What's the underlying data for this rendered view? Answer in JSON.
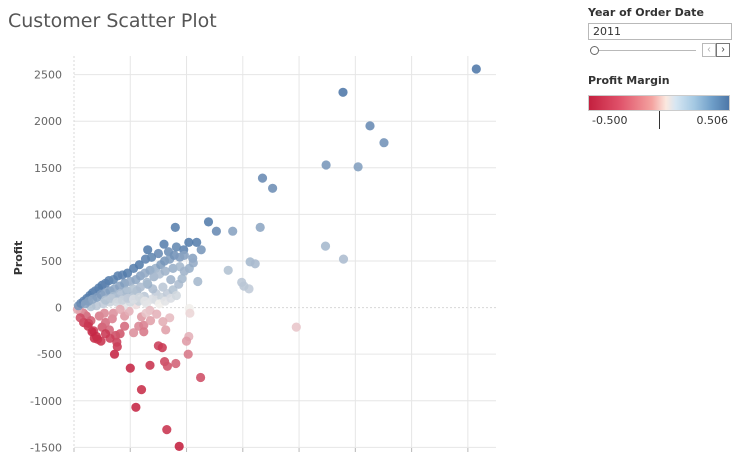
{
  "title": "Customer Scatter Plot",
  "filters": {
    "year": {
      "label": "Year of Order Date",
      "value": "2011",
      "prev_icon": "chevron-left-icon",
      "next_icon": "chevron-right-icon"
    },
    "profit_margin": {
      "label": "Profit Margin",
      "min_label": "-0.500",
      "max_label": "0.506"
    }
  },
  "colors": {
    "negative": "#c4203f",
    "neutral": "#f1efec",
    "positive": "#4d77a8",
    "grid": "#e6e6e6"
  },
  "chart_data": {
    "type": "scatter",
    "title": "Customer Scatter Plot",
    "xlabel": "",
    "ylabel": "Profit",
    "xlim": [
      0,
      7500
    ],
    "ylim": [
      -1550,
      2700
    ],
    "yticks": [
      2500,
      2000,
      1500,
      1000,
      500,
      0,
      -500,
      -1000,
      -1500
    ],
    "color_metric": "Profit Margin",
    "color_range": [
      -0.5,
      0.506
    ],
    "points": [
      [
        7150,
        2560,
        0.5
      ],
      [
        4780,
        2310,
        0.5
      ],
      [
        5260,
        1950,
        0.4
      ],
      [
        5510,
        1770,
        0.36
      ],
      [
        4480,
        1530,
        0.34
      ],
      [
        5050,
        1510,
        0.3
      ],
      [
        3350,
        1390,
        0.4
      ],
      [
        3530,
        1280,
        0.38
      ],
      [
        1800,
        860,
        0.46
      ],
      [
        2390,
        920,
        0.48
      ],
      [
        3310,
        860,
        0.26
      ],
      [
        2530,
        820,
        0.4
      ],
      [
        2820,
        820,
        0.28
      ],
      [
        4470,
        660,
        0.18
      ],
      [
        4790,
        520,
        0.16
      ],
      [
        3130,
        490,
        0.18
      ],
      [
        3220,
        470,
        0.17
      ],
      [
        2740,
        400,
        0.14
      ],
      [
        2980,
        270,
        0.12
      ],
      [
        3110,
        200,
        0.1
      ],
      [
        3020,
        230,
        0.12
      ],
      [
        2180,
        700,
        0.46
      ],
      [
        2260,
        620,
        0.34
      ],
      [
        1310,
        620,
        0.48
      ],
      [
        1600,
        680,
        0.46
      ],
      [
        2040,
        700,
        0.48
      ],
      [
        1950,
        620,
        0.44
      ],
      [
        2110,
        530,
        0.28
      ],
      [
        2050,
        420,
        0.22
      ],
      [
        2200,
        280,
        0.18
      ],
      [
        1720,
        300,
        0.2
      ],
      [
        1580,
        220,
        0.12
      ],
      [
        1460,
        150,
        0.1
      ],
      [
        1380,
        90,
        0.04
      ],
      [
        1290,
        40,
        0.02
      ],
      [
        2050,
        -10,
        0.0
      ],
      [
        2060,
        -60,
        -0.03
      ],
      [
        3950,
        -210,
        -0.06
      ],
      [
        2040,
        -310,
        -0.1
      ],
      [
        2000,
        -360,
        -0.15
      ],
      [
        1700,
        -110,
        -0.08
      ],
      [
        1580,
        -150,
        -0.11
      ],
      [
        1630,
        -240,
        -0.14
      ],
      [
        1150,
        -200,
        -0.2
      ],
      [
        1060,
        -270,
        -0.18
      ],
      [
        1240,
        -190,
        -0.22
      ],
      [
        1200,
        -100,
        -0.16
      ],
      [
        1350,
        -30,
        -0.08
      ],
      [
        2030,
        -500,
        -0.24
      ],
      [
        1810,
        -600,
        -0.3
      ],
      [
        1610,
        -580,
        -0.38
      ],
      [
        1660,
        -630,
        -0.34
      ],
      [
        2250,
        -750,
        -0.36
      ],
      [
        1500,
        -410,
        -0.4
      ],
      [
        1570,
        -430,
        -0.42
      ],
      [
        1350,
        -620,
        -0.44
      ],
      [
        1000,
        -650,
        -0.48
      ],
      [
        1200,
        -880,
        -0.46
      ],
      [
        1100,
        -1070,
        -0.48
      ],
      [
        1650,
        -1310,
        -0.44
      ],
      [
        1870,
        -1490,
        -0.5
      ],
      [
        720,
        -500,
        -0.48
      ],
      [
        770,
        -420,
        -0.42
      ],
      [
        760,
        -370,
        -0.4
      ],
      [
        740,
        -300,
        -0.36
      ],
      [
        360,
        -330,
        -0.46
      ],
      [
        420,
        -340,
        -0.44
      ],
      [
        350,
        -250,
        -0.4
      ],
      [
        500,
        -210,
        -0.34
      ],
      [
        630,
        -240,
        -0.3
      ],
      [
        560,
        -160,
        -0.28
      ],
      [
        300,
        -140,
        -0.32
      ],
      [
        220,
        -90,
        -0.3
      ],
      [
        170,
        -60,
        -0.24
      ],
      [
        110,
        -40,
        -0.18
      ],
      [
        60,
        -20,
        -0.12
      ],
      [
        260,
        -170,
        -0.38
      ],
      [
        450,
        -90,
        -0.24
      ],
      [
        680,
        -120,
        -0.22
      ],
      [
        900,
        -90,
        -0.16
      ],
      [
        980,
        -40,
        -0.1
      ],
      [
        1100,
        30,
        -0.02
      ],
      [
        880,
        20,
        0.02
      ],
      [
        1000,
        60,
        0.06
      ],
      [
        1150,
        70,
        0.08
      ],
      [
        1250,
        120,
        0.12
      ],
      [
        1400,
        200,
        0.16
      ],
      [
        1310,
        250,
        0.22
      ],
      [
        1120,
        180,
        0.18
      ],
      [
        1050,
        130,
        0.14
      ],
      [
        920,
        110,
        0.12
      ],
      [
        780,
        90,
        0.1
      ],
      [
        640,
        60,
        0.08
      ],
      [
        520,
        40,
        0.1
      ],
      [
        400,
        20,
        0.12
      ],
      [
        300,
        10,
        0.14
      ],
      [
        80,
        20,
        0.34
      ],
      [
        120,
        45,
        0.4
      ],
      [
        170,
        70,
        0.44
      ],
      [
        230,
        100,
        0.46
      ],
      [
        280,
        130,
        0.46
      ],
      [
        330,
        160,
        0.48
      ],
      [
        380,
        180,
        0.44
      ],
      [
        440,
        210,
        0.46
      ],
      [
        500,
        240,
        0.48
      ],
      [
        560,
        260,
        0.44
      ],
      [
        620,
        290,
        0.46
      ],
      [
        700,
        300,
        0.42
      ],
      [
        780,
        340,
        0.46
      ],
      [
        860,
        350,
        0.44
      ],
      [
        950,
        370,
        0.48
      ],
      [
        1060,
        420,
        0.46
      ],
      [
        1160,
        460,
        0.48
      ],
      [
        1270,
        520,
        0.44
      ],
      [
        1380,
        540,
        0.42
      ],
      [
        1500,
        580,
        0.4
      ],
      [
        1680,
        600,
        0.38
      ],
      [
        1820,
        650,
        0.42
      ],
      [
        200,
        40,
        0.28
      ],
      [
        260,
        70,
        0.3
      ],
      [
        330,
        90,
        0.26
      ],
      [
        410,
        110,
        0.3
      ],
      [
        480,
        140,
        0.32
      ],
      [
        560,
        160,
        0.28
      ],
      [
        640,
        180,
        0.3
      ],
      [
        720,
        200,
        0.26
      ],
      [
        810,
        230,
        0.28
      ],
      [
        900,
        260,
        0.3
      ],
      [
        1000,
        280,
        0.24
      ],
      [
        1100,
        300,
        0.26
      ],
      [
        1180,
        340,
        0.28
      ],
      [
        1260,
        370,
        0.24
      ],
      [
        1350,
        400,
        0.26
      ],
      [
        1450,
        420,
        0.22
      ],
      [
        1540,
        460,
        0.3
      ],
      [
        1610,
        500,
        0.34
      ],
      [
        1700,
        520,
        0.3
      ],
      [
        1780,
        560,
        0.36
      ],
      [
        1880,
        540,
        0.32
      ],
      [
        1960,
        560,
        0.28
      ],
      [
        2120,
        480,
        0.24
      ],
      [
        700,
        120,
        0.18
      ],
      [
        820,
        150,
        0.16
      ],
      [
        940,
        180,
        0.18
      ],
      [
        1050,
        200,
        0.14
      ],
      [
        1180,
        220,
        0.16
      ],
      [
        1300,
        270,
        0.18
      ],
      [
        1420,
        330,
        0.2
      ],
      [
        1520,
        360,
        0.16
      ],
      [
        1620,
        390,
        0.2
      ],
      [
        1760,
        420,
        0.22
      ],
      [
        1880,
        440,
        0.18
      ],
      [
        1960,
        390,
        0.2
      ],
      [
        560,
        80,
        0.14
      ],
      [
        660,
        100,
        0.12
      ],
      [
        760,
        60,
        0.06
      ],
      [
        860,
        80,
        0.08
      ],
      [
        960,
        100,
        0.1
      ],
      [
        1060,
        90,
        0.04
      ],
      [
        1160,
        110,
        0.06
      ],
      [
        1260,
        70,
        0.02
      ],
      [
        1460,
        80,
        0.04
      ],
      [
        1560,
        110,
        0.08
      ],
      [
        1660,
        150,
        0.1
      ],
      [
        1760,
        190,
        0.14
      ],
      [
        1860,
        250,
        0.16
      ],
      [
        1920,
        310,
        0.18
      ],
      [
        1520,
        40,
        0.0
      ],
      [
        1620,
        70,
        0.02
      ],
      [
        1720,
        100,
        0.04
      ],
      [
        1820,
        130,
        0.06
      ],
      [
        1280,
        -60,
        -0.06
      ],
      [
        1470,
        -70,
        -0.1
      ],
      [
        1360,
        -140,
        -0.14
      ],
      [
        1240,
        -260,
        -0.24
      ],
      [
        900,
        -200,
        -0.28
      ],
      [
        820,
        -280,
        -0.34
      ],
      [
        640,
        -330,
        -0.4
      ],
      [
        560,
        -280,
        -0.42
      ],
      [
        480,
        -360,
        -0.44
      ],
      [
        400,
        -310,
        -0.46
      ],
      [
        320,
        -260,
        -0.48
      ],
      [
        250,
        -200,
        -0.44
      ],
      [
        170,
        -160,
        -0.42
      ],
      [
        110,
        -110,
        -0.36
      ],
      [
        540,
        -60,
        -0.2
      ],
      [
        700,
        -60,
        -0.18
      ],
      [
        820,
        -20,
        -0.12
      ]
    ]
  }
}
